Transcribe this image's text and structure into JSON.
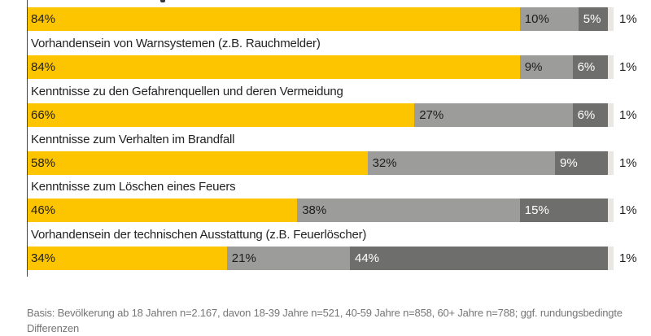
{
  "chart_data": {
    "type": "bar",
    "orientation": "horizontal_stacked",
    "unit": "percent",
    "axis_max": 100,
    "legend_visible": false,
    "segment_colors": [
      "#fdc500",
      "#9c9c9b",
      "#6e6e6d",
      "#eae7e2"
    ],
    "rows": [
      {
        "label": "",
        "segments": [
          {
            "value": 84,
            "label": "84%"
          },
          {
            "value": 10,
            "label": "10%"
          },
          {
            "value": 5,
            "label": "5%"
          },
          {
            "value": 1,
            "label": ""
          }
        ],
        "outside_label": "1%"
      },
      {
        "label": "Vorhandensein von Warnsystemen (z.B. Rauchmelder)",
        "segments": [
          {
            "value": 84,
            "label": "84%"
          },
          {
            "value": 9,
            "label": "9%"
          },
          {
            "value": 6,
            "label": "6%"
          },
          {
            "value": 1,
            "label": ""
          }
        ],
        "outside_label": "1%"
      },
      {
        "label": "Kenntnisse zu den Gefahrenquellen und deren Vermeidung",
        "segments": [
          {
            "value": 66,
            "label": "66%"
          },
          {
            "value": 27,
            "label": "27%"
          },
          {
            "value": 6,
            "label": "6%"
          },
          {
            "value": 1,
            "label": ""
          }
        ],
        "outside_label": "1%"
      },
      {
        "label": "Kenntnisse zum Verhalten im Brandfall",
        "segments": [
          {
            "value": 58,
            "label": "58%"
          },
          {
            "value": 32,
            "label": "32%"
          },
          {
            "value": 9,
            "label": "9%"
          },
          {
            "value": 1,
            "label": ""
          }
        ],
        "outside_label": "1%"
      },
      {
        "label": "Kenntnisse zum Löschen eines Feuers",
        "segments": [
          {
            "value": 46,
            "label": "46%"
          },
          {
            "value": 38,
            "label": "38%"
          },
          {
            "value": 15,
            "label": "15%"
          },
          {
            "value": 1,
            "label": ""
          }
        ],
        "outside_label": "1%"
      },
      {
        "label": "Vorhandensein der technischen Ausstattung (z.B. Feuerlöscher)",
        "segments": [
          {
            "value": 34,
            "label": "34%"
          },
          {
            "value": 21,
            "label": "21%"
          },
          {
            "value": 44,
            "label": "44%"
          },
          {
            "value": 1,
            "label": ""
          }
        ],
        "outside_label": "1%"
      }
    ],
    "footnote_line1": "Basis: Bevölkerung ab 18 Jahren n=2.167, davon 18-39 Jahre n=521, 40-59 Jahre n=858, 60+ Jahre n=788; ggf. rundungsbedingte",
    "footnote_line2": "Differenzen",
    "text_colors": {
      "on_light": "#1d1d1b",
      "on_dark": "#ffffff",
      "footnote": "#767676"
    }
  }
}
